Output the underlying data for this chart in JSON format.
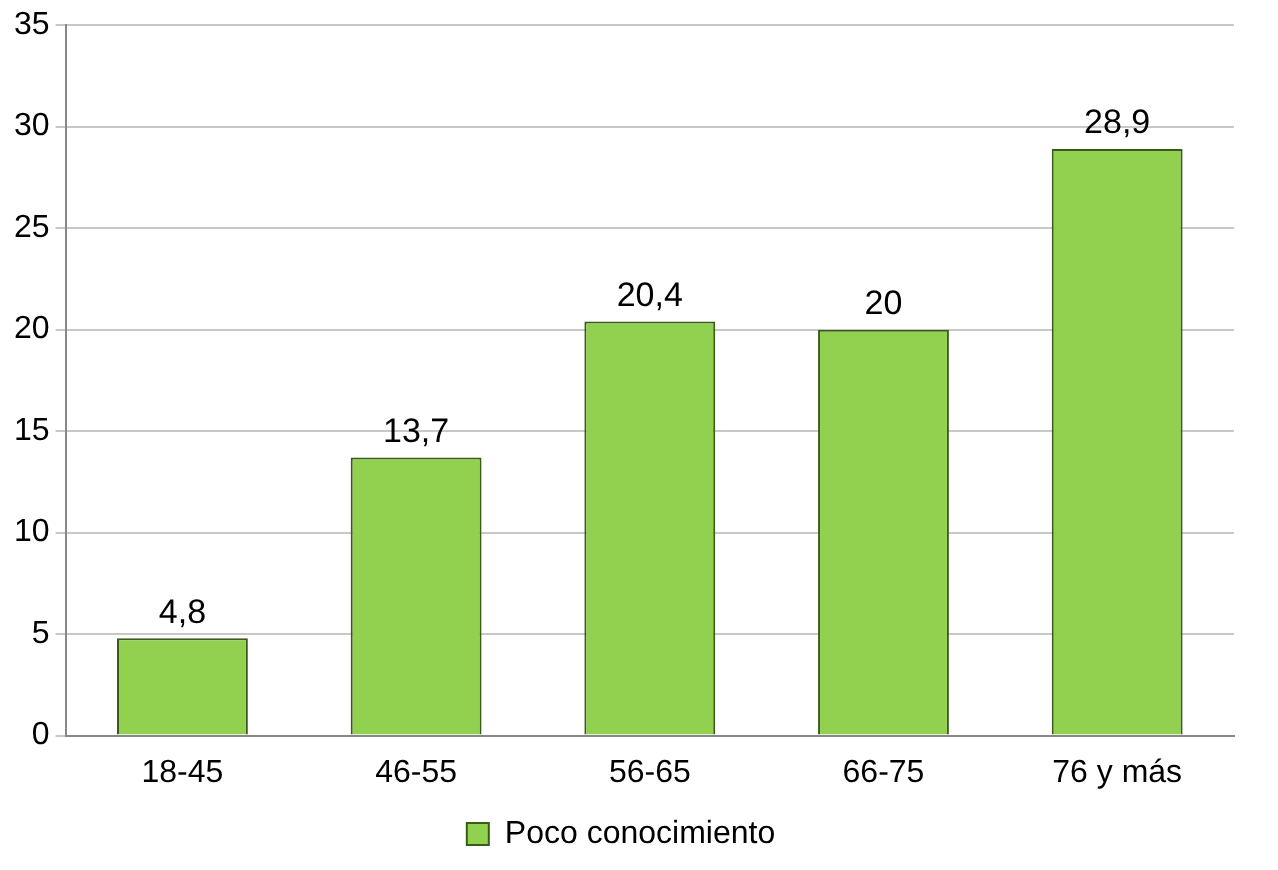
{
  "chart_data": {
    "type": "bar",
    "categories": [
      "18-45",
      "46-55",
      "56-65",
      "66-75",
      "76 y más"
    ],
    "series": [
      {
        "name": "Poco conocimiento",
        "color": "#92d050",
        "values": [
          4.8,
          13.7,
          20.4,
          20,
          28.9
        ],
        "value_labels": [
          "4,8",
          "13,7",
          "20,4",
          "20",
          "28,9"
        ]
      }
    ],
    "ylim": [
      0,
      35
    ],
    "yticks": [
      0,
      5,
      10,
      15,
      20,
      25,
      30,
      35
    ],
    "grid": "y",
    "legend": "bottom"
  }
}
